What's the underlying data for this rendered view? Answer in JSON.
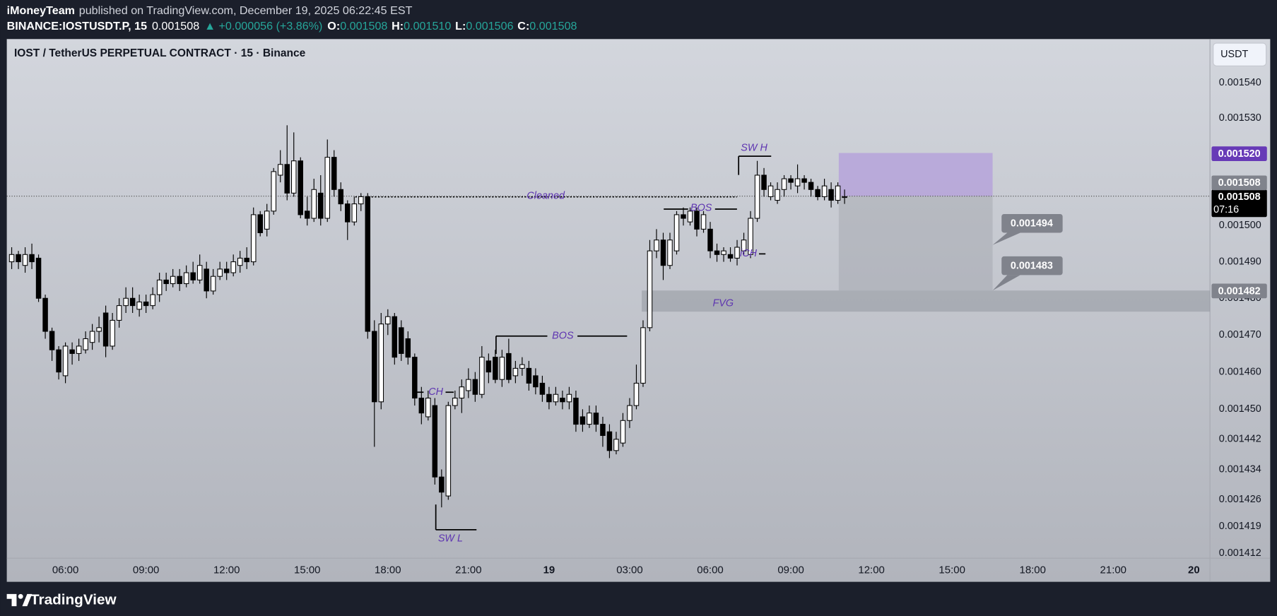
{
  "header": {
    "publisher": "iMoneyTeam",
    "published": "published on TradingView.com, December 19, 2025 06:22:45 EST",
    "symbol": "BINANCE:IOSTUSDT.P, 15",
    "price": "0.001508",
    "change": "▲ +0.000056 (+3.86%)",
    "o_label": "O:",
    "o": "0.001508",
    "h_label": "H:",
    "h": "0.001510",
    "l_label": "L:",
    "l": "0.001506",
    "c_label": "C:",
    "c": "0.001508"
  },
  "currency_button": "USDT",
  "footer": {
    "brand": "TradingView"
  },
  "annotations": {
    "cleaned": "Cleaned",
    "sw_h": "SW H",
    "bos_upper": "BOS",
    "ich": "iCH",
    "bos_lower": "BOS",
    "ch": "CH",
    "sw_l": "SW L",
    "fvg": "FVG"
  },
  "callouts": [
    "0.001494",
    "0.001483"
  ],
  "chart_data": {
    "type": "candlestick",
    "title": "IOST / TetherUS PERPETUAL CONTRACT · 15 · Binance",
    "log_scale": true,
    "grid": false,
    "up_color": "#ffffff",
    "down_color": "#000000",
    "wick_color": "#000000",
    "open": [
      0.00149,
      0.001492,
      0.001489,
      0.001492,
      0.001491,
      0.00148,
      0.001471,
      0.001466,
      0.001459,
      0.001466,
      0.001465,
      0.001466,
      0.001468,
      0.001471,
      0.001476,
      0.001467,
      0.001474,
      0.001478,
      0.00148,
      0.001477,
      0.001479,
      0.001478,
      0.001481,
      0.001485,
      0.001484,
      0.001486,
      0.001484,
      0.001487,
      0.001485,
      0.001488,
      0.001482,
      0.001486,
      0.001488,
      0.001487,
      0.001489,
      0.001491,
      0.00149,
      0.001503,
      0.001499,
      0.001504,
      0.001514,
      0.001517,
      0.001509,
      0.001518,
      0.001504,
      0.001502,
      0.001509,
      0.001502,
      0.001519,
      0.00151,
      0.001506,
      0.001501,
      0.001506,
      0.001508,
      0.001471,
      0.001452,
      0.001473,
      0.001475,
      0.001472,
      0.001469,
      0.001464,
      0.001453,
      0.001448,
      0.001451,
      0.001432,
      0.001427,
      0.001451,
      0.001453,
      0.001455,
      0.001458,
      0.001454,
      0.001463,
      0.001464,
      0.001458,
      0.001465,
      0.001459,
      0.001461,
      0.001461,
      0.001459,
      0.001457,
      0.001454,
      0.001452,
      0.001453,
      0.001452,
      0.001453,
      0.001448,
      0.001446,
      0.001449,
      0.001446,
      0.001444,
      0.001439,
      0.001441,
      0.001447,
      0.001451,
      0.001457,
      0.001472,
      0.001493,
      0.001496,
      0.001489,
      0.001493,
      0.001503,
      0.001501,
      0.001504,
      0.001499,
      0.001499,
      0.001493,
      0.001492,
      0.001492,
      0.001491,
      0.001493,
      0.001492,
      0.001502,
      0.001514,
      0.001508,
      0.001507,
      0.00151,
      0.001513,
      0.001511,
      0.001513,
      0.001512,
      0.00151,
      0.001508,
      0.00151,
      0.001507,
      0.001508
    ],
    "high": [
      0.001494,
      0.001493,
      0.001494,
      0.001495,
      0.001492,
      0.001481,
      0.001472,
      0.001467,
      0.001468,
      0.001468,
      0.001469,
      0.001471,
      0.001473,
      0.001475,
      0.001478,
      0.001476,
      0.00148,
      0.001483,
      0.001483,
      0.001481,
      0.001481,
      0.001483,
      0.001487,
      0.001487,
      0.001488,
      0.001488,
      0.001489,
      0.00149,
      0.001492,
      0.00149,
      0.001488,
      0.00149,
      0.00149,
      0.001492,
      0.001493,
      0.001494,
      0.001505,
      0.001504,
      0.001506,
      0.001516,
      0.001521,
      0.001528,
      0.001526,
      0.001519,
      0.001508,
      0.001513,
      0.001514,
      0.001524,
      0.001521,
      0.001512,
      0.001507,
      0.001508,
      0.001509,
      0.001509,
      0.001474,
      0.001476,
      0.001477,
      0.001476,
      0.001474,
      0.001471,
      0.001465,
      0.001456,
      0.001455,
      0.001453,
      0.001434,
      0.001452,
      0.001455,
      0.001458,
      0.001461,
      0.00146,
      0.001467,
      0.001465,
      0.001466,
      0.001466,
      0.001469,
      0.001463,
      0.001464,
      0.001463,
      0.001461,
      0.001459,
      0.001456,
      0.001456,
      0.001455,
      0.001456,
      0.001455,
      0.00145,
      0.001451,
      0.001451,
      0.001448,
      0.001446,
      0.001444,
      0.001449,
      0.001453,
      0.001462,
      0.001474,
      0.001496,
      0.001499,
      0.001498,
      0.001498,
      0.001504,
      0.001505,
      0.001505,
      0.001505,
      0.001504,
      0.001501,
      0.001495,
      0.001494,
      0.001494,
      0.001496,
      0.001498,
      0.001504,
      0.001518,
      0.001516,
      0.001512,
      0.001512,
      0.001514,
      0.001514,
      0.001517,
      0.001514,
      0.001513,
      0.001511,
      0.001513,
      0.001512,
      0.001512,
      0.00151
    ],
    "low": [
      0.001488,
      0.001488,
      0.001487,
      0.001488,
      0.001479,
      0.001469,
      0.001463,
      0.001458,
      0.001457,
      0.001462,
      0.001463,
      0.001465,
      0.001466,
      0.001468,
      0.001464,
      0.001466,
      0.001472,
      0.001476,
      0.001476,
      0.001475,
      0.001476,
      0.001477,
      0.001479,
      0.001482,
      0.001483,
      0.001482,
      0.001483,
      0.001484,
      0.001484,
      0.00148,
      0.001481,
      0.001485,
      0.001485,
      0.001486,
      0.001487,
      0.001488,
      0.001489,
      0.001497,
      0.001497,
      0.001503,
      0.001512,
      0.001507,
      0.001508,
      0.001502,
      0.0015,
      0.001501,
      0.0015,
      0.001501,
      0.001508,
      0.001504,
      0.001496,
      0.0015,
      0.001504,
      0.001469,
      0.00144,
      0.00145,
      0.00147,
      0.001462,
      0.001463,
      0.001462,
      0.001451,
      0.001446,
      0.001447,
      0.00143,
      0.001424,
      0.001426,
      0.00145,
      0.001449,
      0.001453,
      0.001452,
      0.001453,
      0.001457,
      0.001457,
      0.001456,
      0.001457,
      0.001457,
      0.001459,
      0.001455,
      0.001454,
      0.001452,
      0.00145,
      0.001451,
      0.00145,
      0.00145,
      0.001444,
      0.001444,
      0.001445,
      0.001444,
      0.00144,
      0.001437,
      0.001438,
      0.00144,
      0.001445,
      0.00145,
      0.001456,
      0.001471,
      0.001491,
      0.001485,
      0.001488,
      0.001492,
      0.0015,
      0.0015,
      0.001497,
      0.001498,
      0.001491,
      0.00149,
      0.00149,
      0.00149,
      0.001489,
      0.001492,
      0.001491,
      0.001501,
      0.001508,
      0.001507,
      0.001506,
      0.001508,
      0.00151,
      0.001509,
      0.00151,
      0.001508,
      0.001507,
      0.001507,
      0.001505,
      0.001506,
      0.001506
    ],
    "close": [
      0.001492,
      0.00149,
      0.001492,
      0.00149,
      0.00148,
      0.001471,
      0.001466,
      0.00146,
      0.001467,
      0.001465,
      0.001467,
      0.001469,
      0.001471,
      0.001472,
      0.001467,
      0.001474,
      0.001478,
      0.00148,
      0.001478,
      0.001479,
      0.001478,
      0.001481,
      0.001485,
      0.001484,
      0.001486,
      0.001484,
      0.001487,
      0.001485,
      0.001489,
      0.001482,
      0.001486,
      0.001488,
      0.001487,
      0.00149,
      0.001491,
      0.00149,
      0.001503,
      0.001498,
      0.001504,
      0.001515,
      0.001517,
      0.001509,
      0.001518,
      0.001503,
      0.001502,
      0.00151,
      0.001502,
      0.001519,
      0.00151,
      0.001506,
      0.001501,
      0.001506,
      0.001508,
      0.001471,
      0.001452,
      0.001473,
      0.001475,
      0.001464,
      0.001465,
      0.001464,
      0.001453,
      0.001449,
      0.001453,
      0.001432,
      0.001428,
      0.001451,
      0.001453,
      0.001456,
      0.001458,
      0.001454,
      0.001464,
      0.00146,
      0.001458,
      0.001464,
      0.001458,
      0.001461,
      0.001462,
      0.001457,
      0.001456,
      0.001454,
      0.001452,
      0.001454,
      0.001452,
      0.001454,
      0.001446,
      0.001446,
      0.001449,
      0.001446,
      0.001443,
      0.001439,
      0.001442,
      0.001447,
      0.001451,
      0.001457,
      0.001472,
      0.001493,
      0.001496,
      0.001489,
      0.001496,
      0.001503,
      0.001502,
      0.001504,
      0.001499,
      0.001503,
      0.001493,
      0.001492,
      0.001493,
      0.001491,
      0.001494,
      0.001496,
      0.001502,
      0.001514,
      0.00151,
      0.001511,
      0.00151,
      0.001513,
      0.001512,
      0.001513,
      0.001512,
      0.00151,
      0.001508,
      0.001511,
      0.001507,
      0.001511,
      0.001508
    ],
    "xlim": [
      -0.73,
      178.4
    ],
    "xticks": [
      {
        "value": 8,
        "label": "06:00"
      },
      {
        "value": 20,
        "label": "09:00"
      },
      {
        "value": 32,
        "label": "12:00"
      },
      {
        "value": 44,
        "label": "15:00"
      },
      {
        "value": 56,
        "label": "18:00"
      },
      {
        "value": 68,
        "label": "21:00"
      },
      {
        "value": 80,
        "label": "19"
      },
      {
        "value": 92,
        "label": "03:00"
      },
      {
        "value": 104,
        "label": "06:00"
      },
      {
        "value": 116,
        "label": "09:00"
      },
      {
        "value": 128,
        "label": "12:00"
      },
      {
        "value": 140,
        "label": "15:00"
      },
      {
        "value": 152,
        "label": "18:00"
      },
      {
        "value": 164,
        "label": "21:00"
      },
      {
        "value": 176,
        "label": "20"
      }
    ],
    "ylim": [
      0.0014107,
      0.0015525
    ],
    "yticks": [
      {
        "value": 0.00154,
        "label": "0.001540"
      },
      {
        "value": 0.00153,
        "label": "0.001530"
      },
      {
        "value": 0.0015,
        "label": "0.001500"
      },
      {
        "value": 0.00149,
        "label": "0.001490"
      },
      {
        "value": 0.00148,
        "label": "0.001480"
      },
      {
        "value": 0.00147,
        "label": "0.001470"
      },
      {
        "value": 0.00146,
        "label": "0.001460"
      },
      {
        "value": 0.00145,
        "label": "0.001450"
      },
      {
        "value": 0.001442,
        "label": "0.001442"
      },
      {
        "value": 0.001434,
        "label": "0.001434"
      },
      {
        "value": 0.001426,
        "label": "0.001426"
      },
      {
        "value": 0.001419,
        "label": "0.001419"
      },
      {
        "value": 0.001412,
        "label": "0.001412"
      }
    ],
    "price_tags": [
      {
        "value": 0.00152,
        "label": "0.001520",
        "color": "#673ab7",
        "text_color": "#ffffff"
      },
      {
        "value": 0.001508,
        "label": "0.001508",
        "color": "#000000",
        "text_color": "#ffffff",
        "countdown": "07:16"
      },
      {
        "value": 0.001508,
        "label": "0.001508",
        "color": "#80838c",
        "text_color": "#ffffff"
      },
      {
        "value": 0.001482,
        "label": "0.001482",
        "color": "#80838c",
        "text_color": "#ffffff"
      }
    ]
  }
}
